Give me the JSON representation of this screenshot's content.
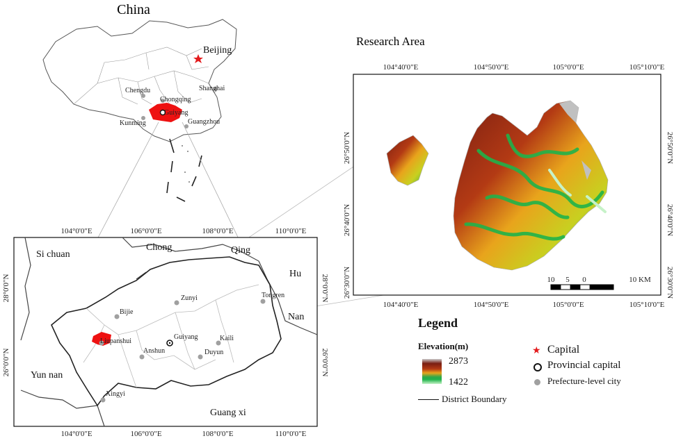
{
  "china_map": {
    "title": "China",
    "cities": [
      {
        "name": "Beijing",
        "kind": "capital"
      },
      {
        "name": "Chengdu",
        "kind": "prefecture"
      },
      {
        "name": "Chongqing",
        "kind": "prefecture"
      },
      {
        "name": "Shanghai",
        "kind": "prefecture"
      },
      {
        "name": "Guiyang",
        "kind": "provincial"
      },
      {
        "name": "Kunming",
        "kind": "prefecture"
      },
      {
        "name": "Guangzhou",
        "kind": "prefecture"
      }
    ]
  },
  "research_area": {
    "title": "Research Area",
    "top_lon": [
      "104°40'0\"E",
      "104°50'0\"E",
      "105°0'0\"E",
      "105°10'0\"E"
    ],
    "bottom_lon": [
      "104°40'0\"E",
      "104°50'0\"E",
      "105°0'0\"E",
      "105°10'0\"E"
    ],
    "left_lat": [
      "26°50'0\"N",
      "26°40'0\"N",
      "26°30'0\"N"
    ],
    "right_lat": [
      "26°50'0\"N",
      "26°40'0\"N",
      "26°30'0\"N"
    ],
    "scale_labels": [
      "10",
      "5",
      "0",
      "10 KM"
    ]
  },
  "guizhou_map": {
    "top_lon": [
      "104°0'0\"E",
      "106°0'0\"E",
      "108°0'0\"E",
      "110°0'0\"E"
    ],
    "bottom_lon": [
      "104°0'0\"E",
      "106°0'0\"E",
      "108°0'0\"E",
      "110°0'0\"E"
    ],
    "left_lat": [
      "28°0'0\"N",
      "26°0'0\"N"
    ],
    "right_lat": [
      "28°0'0\"N",
      "26°0'0\"N"
    ],
    "neighbors": [
      "Si chuan",
      "Chong",
      "Qing",
      "Hu",
      "Nan",
      "Yun nan",
      "Guang xi"
    ],
    "cities": [
      "Zunyi",
      "Tongren",
      "Bijie",
      "Liupanshui",
      "Guiyang",
      "Kaili",
      "Anshun",
      "Duyun",
      "Xingyi"
    ]
  },
  "legend": {
    "title": "Legend",
    "elevation_title": "Elevation(m)",
    "elev_max": "2873",
    "elev_min": "1422",
    "boundary": "District Boundary",
    "capital": "Capital",
    "provincial": "Provincial capital",
    "prefecture": "Prefecture-level city",
    "colors": {
      "capital": "#e31a1c",
      "city": "#a0a0a0",
      "highlight": "#ee1111"
    }
  }
}
